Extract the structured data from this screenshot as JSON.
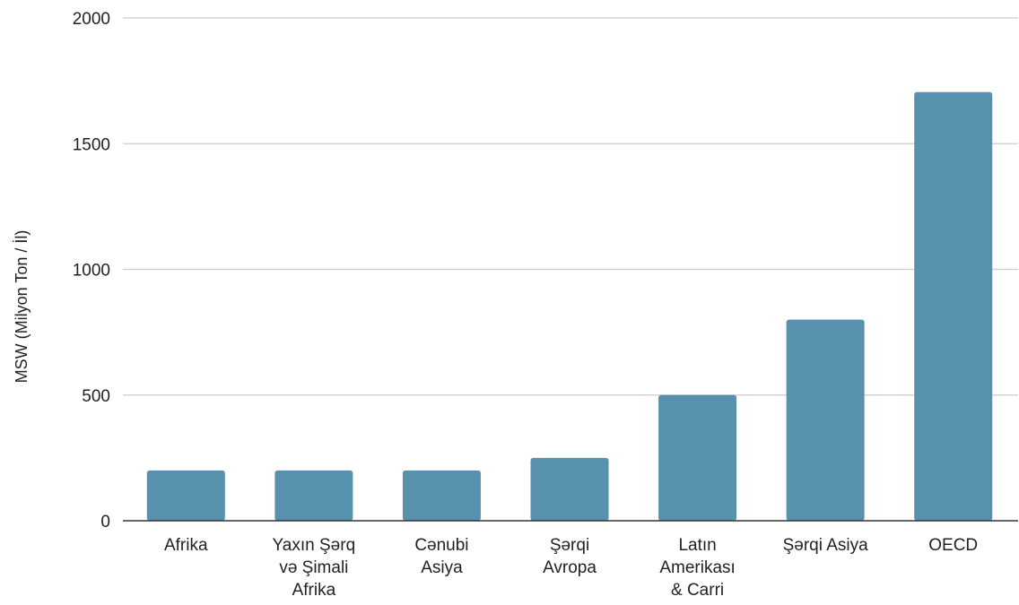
{
  "chart_data": {
    "type": "bar",
    "title": "",
    "xlabel": "",
    "ylabel": "MSW (Milyon Ton / İl)",
    "categories": [
      [
        "Afrika"
      ],
      [
        "Yaxın Şərq",
        "və Şimali",
        "Afrika"
      ],
      [
        "Cənubi",
        "Asiya"
      ],
      [
        "Şərqi",
        "Avropa"
      ],
      [
        "Latın",
        "Amerikası",
        "& Carri"
      ],
      [
        "Şərqi Asiya"
      ],
      [
        "OECD"
      ]
    ],
    "values": [
      200,
      200,
      200,
      250,
      500,
      800,
      1705
    ],
    "ylim": [
      0,
      2000
    ],
    "yticks": [
      0,
      500,
      1000,
      1500,
      2000
    ],
    "grid": true,
    "colors": {
      "bar": "#5891ad",
      "grid": "#cccccc",
      "axis": "#333333"
    }
  }
}
